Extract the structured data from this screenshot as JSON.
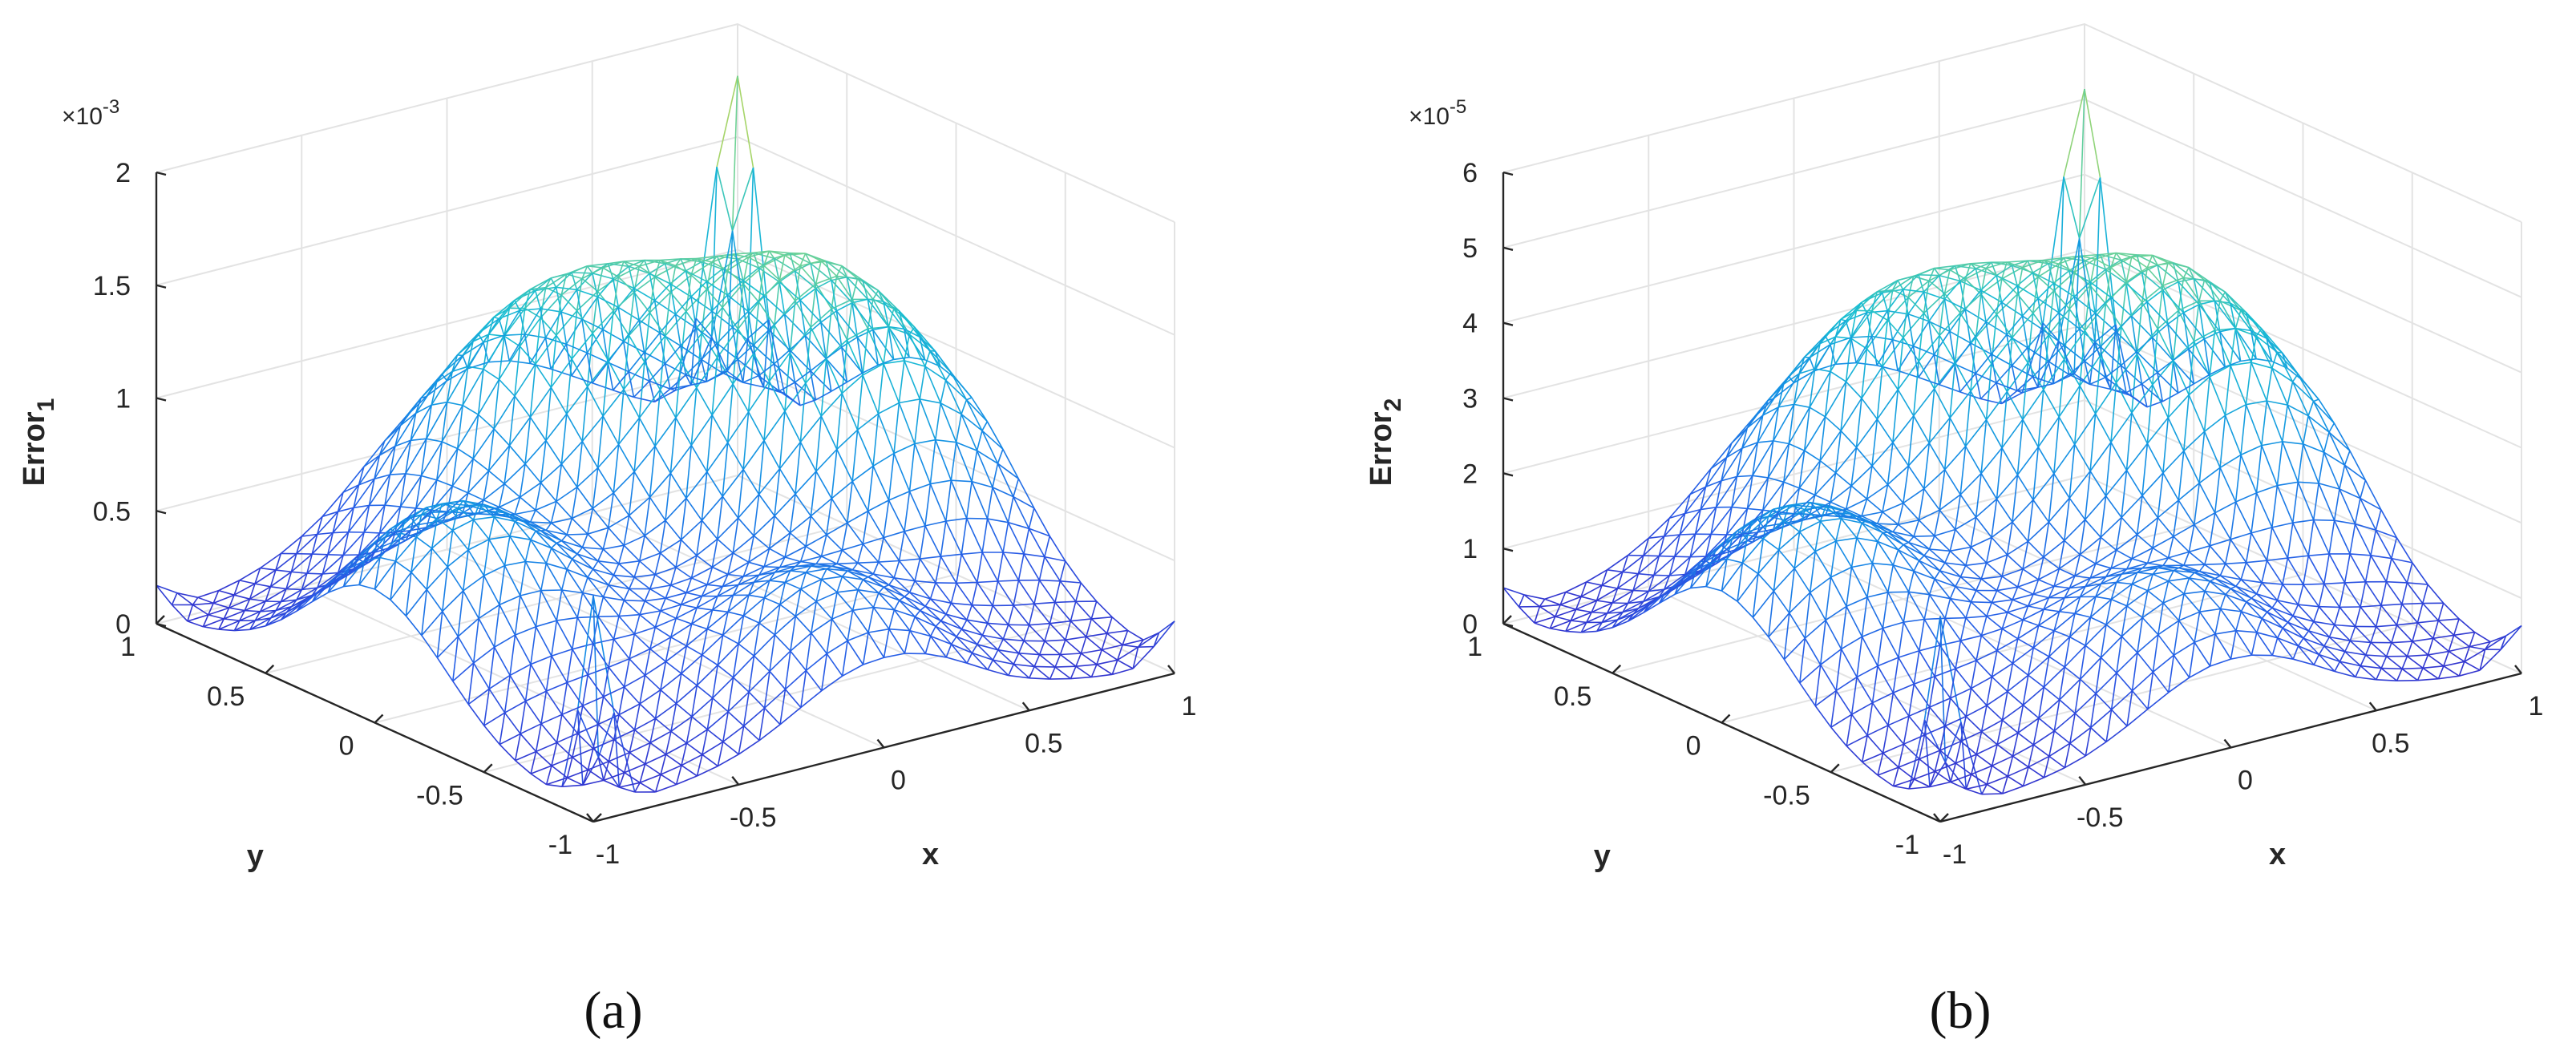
{
  "chart_data": [
    {
      "type": "surface-mesh",
      "panel": "a",
      "caption": "(a)",
      "xlabel": "x",
      "ylabel": "y",
      "zlabel_main": "Error",
      "zlabel_sub": "1",
      "exponent_label": "×10-3",
      "exponent_base": "×10",
      "exponent_power": "-3",
      "x_ticks": [
        "-1",
        "-0.5",
        "0",
        "0.5",
        "1"
      ],
      "y_ticks": [
        "-1",
        "-0.5",
        "0",
        "0.5",
        "1"
      ],
      "z_ticks": [
        "0",
        "0.5",
        "1",
        "1.5",
        "2"
      ],
      "xlim": [
        -1,
        1
      ],
      "ylim": [
        -1,
        1
      ],
      "zlim": [
        0,
        2
      ],
      "z_scale": 0.001,
      "mesh_resolution": 29,
      "features": {
        "base": 0.04,
        "edge_humps": [
          {
            "x": 0.0,
            "y": 0.72,
            "height": 0.72,
            "width": 0.32
          },
          {
            "x": 0.0,
            "y": -0.72,
            "height": 0.55,
            "width": 0.3
          },
          {
            "x": 0.72,
            "y": 0.0,
            "height": 0.85,
            "width": 0.34
          },
          {
            "x": -0.72,
            "y": 0.0,
            "height": 0.8,
            "width": 0.32
          }
        ],
        "central_dome": {
          "x": 0.45,
          "y": 0.45,
          "height": 0.9,
          "width": 0.42
        },
        "back_corner_peak": {
          "x": 1.0,
          "y": 1.0,
          "height": 1.55
        },
        "front_corner_spike": {
          "x": -1.0,
          "y": -1.0,
          "height": 0.95
        },
        "side_spikes": [
          {
            "x": 1.0,
            "y": -1.0,
            "height": 0.18
          },
          {
            "x": -1.0,
            "y": 1.0,
            "height": 0.12
          }
        ]
      }
    },
    {
      "type": "surface-mesh",
      "panel": "b",
      "caption": "(b)",
      "xlabel": "x",
      "ylabel": "y",
      "zlabel_main": "Error",
      "zlabel_sub": "2",
      "exponent_label": "×10-5",
      "exponent_base": "×10",
      "exponent_power": "-5",
      "x_ticks": [
        "-1",
        "-0.5",
        "0",
        "0.5",
        "1"
      ],
      "y_ticks": [
        "-1",
        "-0.5",
        "0",
        "0.5",
        "1"
      ],
      "z_ticks": [
        "0",
        "1",
        "2",
        "3",
        "4",
        "5",
        "6"
      ],
      "xlim": [
        -1,
        1
      ],
      "ylim": [
        -1,
        1
      ],
      "zlim": [
        0,
        6
      ],
      "z_scale": 1e-05,
      "mesh_resolution": 29,
      "features": {
        "base": 0.1,
        "edge_humps": [
          {
            "x": 0.0,
            "y": 0.72,
            "height": 2.15,
            "width": 0.32
          },
          {
            "x": 0.0,
            "y": -0.72,
            "height": 1.65,
            "width": 0.3
          },
          {
            "x": 0.72,
            "y": 0.0,
            "height": 2.55,
            "width": 0.34
          },
          {
            "x": -0.72,
            "y": 0.0,
            "height": 2.4,
            "width": 0.32
          }
        ],
        "central_dome": {
          "x": 0.45,
          "y": 0.45,
          "height": 2.7,
          "width": 0.42
        },
        "back_corner_peak": {
          "x": 1.0,
          "y": 1.0,
          "height": 4.5
        },
        "front_corner_spike": {
          "x": -1.0,
          "y": -1.0,
          "height": 2.6
        },
        "side_spikes": [
          {
            "x": 1.0,
            "y": -1.0,
            "height": 0.5
          },
          {
            "x": -1.0,
            "y": 1.0,
            "height": 0.35
          }
        ]
      }
    }
  ]
}
